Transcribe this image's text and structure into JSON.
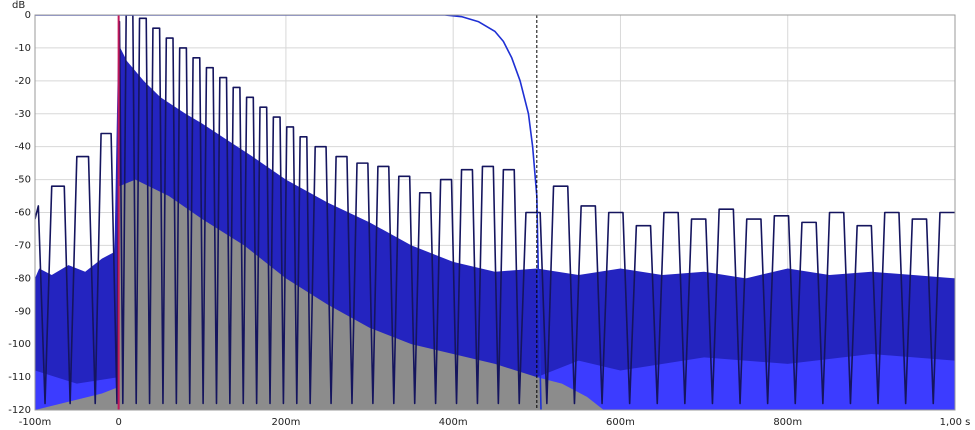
{
  "chart_data": {
    "type": "line",
    "y_label": "dB",
    "xlim": [
      -0.1,
      1.0
    ],
    "ylim": [
      -120,
      0
    ],
    "xticks": [
      {
        "value": -0.1,
        "label": "-100m"
      },
      0,
      {
        "value": 0.2,
        "label": "200m"
      },
      {
        "value": 0.4,
        "label": "400m"
      },
      {
        "value": 0.6,
        "label": "600m"
      },
      {
        "value": 0.8,
        "label": "800m"
      },
      {
        "value": 1.0,
        "label": "1,00 s"
      }
    ],
    "yticks": [
      0,
      -10,
      -20,
      -30,
      -40,
      -50,
      -60,
      -70,
      -80,
      -90,
      -100,
      -110,
      -120
    ],
    "grid": true,
    "cursors": [
      {
        "x": 0,
        "color": "#c0185a",
        "dashed": false
      },
      {
        "x": 0.5,
        "color": "#000000",
        "dashed": true
      }
    ],
    "series": [
      {
        "kind": "area",
        "color": "#2424c0",
        "x": [
          -0.1,
          -0.095,
          -0.08,
          -0.06,
          -0.04,
          -0.02,
          -0.005,
          0,
          0.002,
          0.01,
          0.03,
          0.05,
          0.08,
          0.1,
          0.13,
          0.16,
          0.2,
          0.25,
          0.3,
          0.35,
          0.4,
          0.45,
          0.5,
          0.55,
          0.6,
          0.65,
          0.7,
          0.75,
          0.8,
          0.85,
          0.9,
          0.95,
          1.0
        ],
        "values": [
          -80,
          -77,
          -79,
          -76,
          -78,
          -74,
          -72,
          -2,
          -10,
          -14,
          -20,
          -25,
          -30,
          -33,
          -38,
          -43,
          -50,
          -57,
          -63,
          -70,
          -75,
          -78,
          -77,
          -79,
          -77,
          -79,
          -78,
          -80,
          -77,
          -79,
          -78,
          -79,
          -80
        ]
      },
      {
        "kind": "area",
        "color": "#3c3cff",
        "x": [
          -0.1,
          -0.05,
          0,
          0.1,
          0.3,
          0.5,
          0.55,
          0.6,
          0.7,
          0.8,
          0.9,
          1.0
        ],
        "values": [
          -108,
          -112,
          -110,
          -112,
          -108,
          -110,
          -105,
          -108,
          -104,
          -106,
          -103,
          -105
        ]
      },
      {
        "kind": "area",
        "color": "#8c8c8c",
        "x": [
          -0.1,
          -0.02,
          0,
          0.001,
          0.02,
          0.06,
          0.1,
          0.15,
          0.2,
          0.25,
          0.3,
          0.35,
          0.4,
          0.45,
          0.5,
          0.53,
          0.56,
          0.58
        ],
        "values": [
          -120,
          -115,
          -113,
          -52,
          -50,
          -55,
          -62,
          -70,
          -80,
          -88,
          -95,
          -100,
          -103,
          -106,
          -110,
          -112,
          -116,
          -120
        ]
      },
      {
        "kind": "line",
        "color": "#15155e",
        "x": [
          -0.1,
          -0.096,
          -0.088,
          -0.08,
          -0.065,
          -0.058,
          -0.05,
          -0.036,
          -0.028,
          -0.021,
          -0.009,
          -0.002,
          0.001,
          0.005,
          0.009,
          0.017,
          0.021,
          0.025,
          0.033,
          0.037,
          0.041,
          0.049,
          0.053,
          0.057,
          0.065,
          0.069,
          0.073,
          0.081,
          0.085,
          0.089,
          0.097,
          0.101,
          0.105,
          0.113,
          0.117,
          0.121,
          0.129,
          0.133,
          0.137,
          0.145,
          0.149,
          0.153,
          0.161,
          0.165,
          0.169,
          0.177,
          0.181,
          0.185,
          0.193,
          0.197,
          0.201,
          0.209,
          0.213,
          0.217,
          0.225,
          0.229,
          0.235,
          0.248,
          0.254,
          0.26,
          0.273,
          0.279,
          0.285,
          0.298,
          0.304,
          0.31,
          0.323,
          0.329,
          0.335,
          0.348,
          0.354,
          0.36,
          0.373,
          0.379,
          0.385,
          0.398,
          0.404,
          0.41,
          0.423,
          0.429,
          0.435,
          0.448,
          0.454,
          0.46,
          0.473,
          0.479,
          0.487,
          0.504,
          0.512,
          0.52,
          0.537,
          0.545,
          0.553,
          0.57,
          0.578,
          0.586,
          0.603,
          0.611,
          0.619,
          0.636,
          0.644,
          0.652,
          0.669,
          0.677,
          0.685,
          0.702,
          0.71,
          0.718,
          0.735,
          0.743,
          0.751,
          0.768,
          0.776,
          0.784,
          0.801,
          0.809,
          0.817,
          0.834,
          0.842,
          0.85,
          0.867,
          0.875,
          0.883,
          0.9,
          0.908,
          0.916,
          0.933,
          0.941,
          0.949,
          0.966,
          0.974,
          0.982,
          1.0
        ],
        "values": [
          -62,
          -58,
          -118,
          -52,
          -52,
          -118,
          -43,
          -43,
          -118,
          -36,
          -36,
          -118,
          -2,
          -118,
          0,
          0,
          -118,
          -1,
          -1,
          -118,
          -4,
          -4,
          -118,
          -7,
          -7,
          -118,
          -10,
          -10,
          -118,
          -13,
          -13,
          -118,
          -16,
          -16,
          -118,
          -19,
          -19,
          -118,
          -22,
          -22,
          -118,
          -25,
          -25,
          -118,
          -28,
          -28,
          -118,
          -31,
          -31,
          -118,
          -34,
          -34,
          -118,
          -37,
          -37,
          -118,
          -40,
          -40,
          -118,
          -43,
          -43,
          -118,
          -45,
          -45,
          -118,
          -46,
          -46,
          -118,
          -49,
          -49,
          -118,
          -54,
          -54,
          -118,
          -50,
          -50,
          -118,
          -47,
          -47,
          -118,
          -46,
          -46,
          -118,
          -47,
          -47,
          -118,
          -60,
          -60,
          -118,
          -52,
          -52,
          -118,
          -58,
          -58,
          -118,
          -60,
          -60,
          -118,
          -64,
          -64,
          -118,
          -60,
          -60,
          -118,
          -62,
          -62,
          -118,
          -59,
          -59,
          -118,
          -62,
          -62,
          -118,
          -61,
          -61,
          -118,
          -63,
          -63,
          -118,
          -60,
          -60,
          -118,
          -64,
          -64,
          -118,
          -60,
          -60,
          -118,
          -62,
          -62,
          -118,
          -60,
          -60
        ]
      },
      {
        "kind": "line",
        "color": "#1f30d4",
        "x": [
          -0.1,
          0.39,
          0.41,
          0.43,
          0.45,
          0.46,
          0.47,
          0.48,
          0.49,
          0.495,
          0.5,
          0.505
        ],
        "values": [
          0,
          0,
          -0.5,
          -2,
          -5,
          -8,
          -13,
          -20,
          -30,
          -40,
          -55,
          -120
        ]
      }
    ]
  }
}
